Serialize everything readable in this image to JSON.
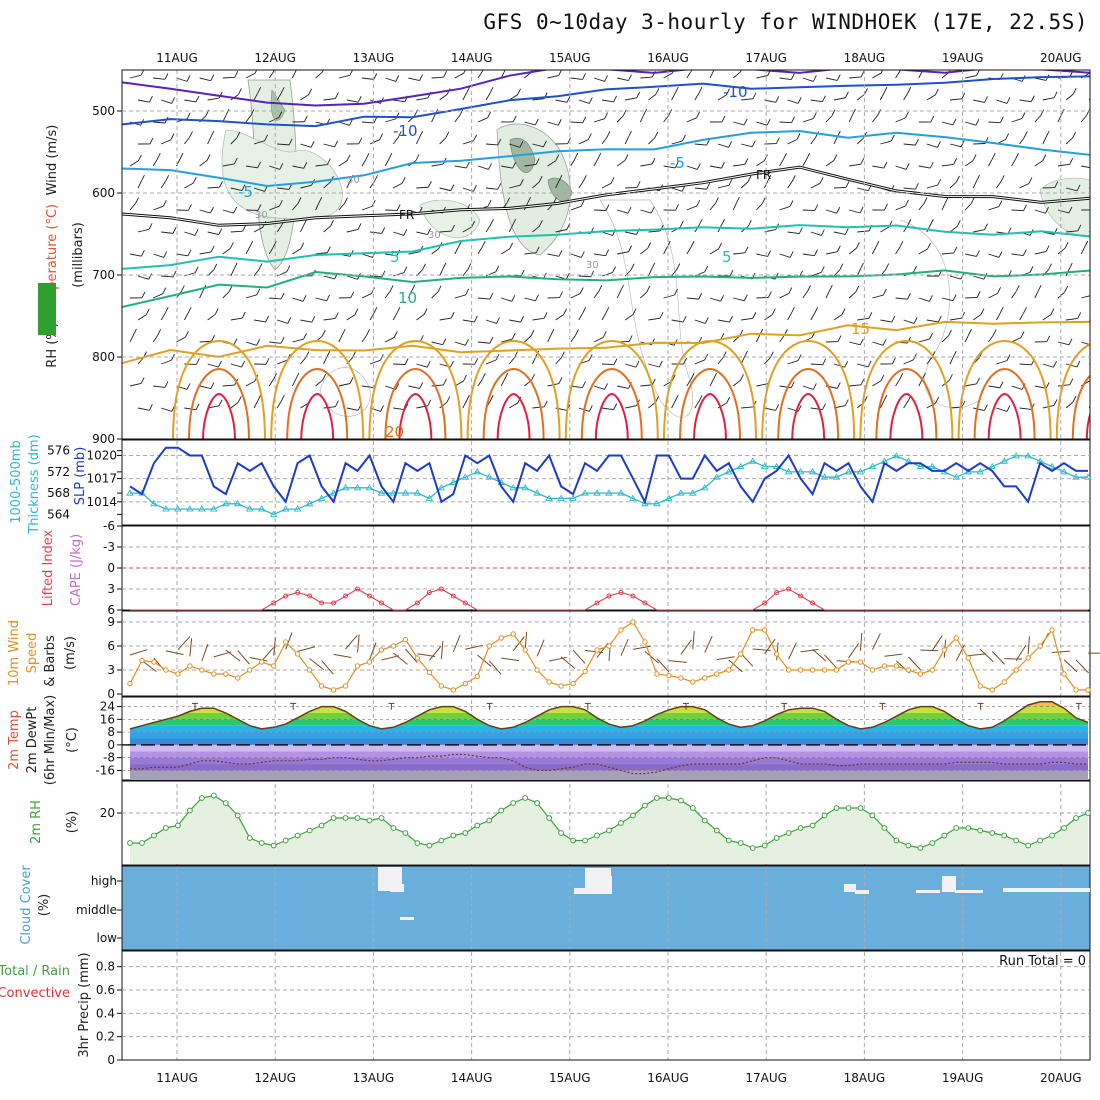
{
  "title": "GFS 0~10day 3-hourly for WINDHOEK (17E, 22.5S)",
  "dates": [
    "11AUG",
    "12AUG",
    "13AUG",
    "14AUG",
    "15AUG",
    "16AUG",
    "17AUG",
    "18AUG",
    "19AUG",
    "20AUG"
  ],
  "colors": {
    "temp_cold": "#5a20c0",
    "temp_blue": "#2050d0",
    "temp_cyan": "#22a0e0",
    "temp_teal": "#20c0b0",
    "temp_green": "#20b080",
    "temp_warm": "#e0a020",
    "temp_orange": "#e07020",
    "temp_red": "#e02040",
    "slp": "#1c3cc8",
    "thickness": "#30b8c8",
    "lifted": "#e04050",
    "wind": "#e09020",
    "rh": "#40a040",
    "cloud": "#6aaedc"
  },
  "chart_data": [
    {
      "panel": "upper-air",
      "type": "contour",
      "ylabel_parts": [
        "Wind (m/s)",
        "Temperature (°C)",
        "RH (%)",
        "(millibars)"
      ],
      "yticks": [
        "500",
        "600",
        "700",
        "800",
        "900"
      ],
      "ylim": [
        450,
        900
      ],
      "contour_labels": [
        "-10",
        "-10",
        "-5",
        "-5",
        "5",
        "5",
        "10",
        "15",
        "20",
        "FR",
        "FR",
        "30",
        "30",
        "30",
        "30"
      ],
      "isotherms": [
        {
          "name": "-15",
          "values": [
            465,
            470,
            480,
            490,
            490,
            488,
            480,
            470,
            455,
            450,
            450,
            450,
            450,
            450,
            450,
            450,
            450,
            450,
            450,
            450,
            450
          ]
        },
        {
          "name": "-10",
          "values": [
            520,
            510,
            515,
            520,
            515,
            510,
            505,
            495,
            490,
            480,
            475,
            470,
            470,
            470,
            468,
            466,
            465,
            463,
            462,
            460,
            460
          ]
        },
        {
          "name": "-5",
          "values": [
            568,
            575,
            585,
            595,
            585,
            575,
            565,
            560,
            555,
            550,
            548,
            545,
            538,
            530,
            528,
            530,
            530,
            535,
            540,
            545,
            550
          ]
        },
        {
          "name": "FR",
          "values": [
            625,
            632,
            640,
            640,
            632,
            625,
            625,
            620,
            618,
            615,
            605,
            598,
            585,
            580,
            572,
            580,
            598,
            605,
            608,
            610,
            610
          ]
        },
        {
          "name": "5",
          "values": [
            695,
            685,
            680,
            680,
            672,
            670,
            668,
            662,
            655,
            650,
            650,
            648,
            645,
            640,
            642,
            645,
            643,
            644,
            648,
            650,
            652
          ]
        },
        {
          "name": "10",
          "values": [
            738,
            722,
            712,
            712,
            700,
            700,
            705,
            702,
            700,
            704,
            703,
            705,
            700,
            702,
            700,
            700,
            698,
            698,
            700,
            698,
            697
          ]
        },
        {
          "name": "15",
          "values": [
            805,
            790,
            800,
            790,
            790,
            790,
            790,
            792,
            790,
            788,
            785,
            785,
            780,
            775,
            770,
            765,
            765,
            760,
            760,
            758,
            760
          ]
        }
      ]
    },
    {
      "panel": "slp-thickness",
      "type": "line",
      "ylabel_parts": [
        "1000-500mb",
        "Thickness (dm)",
        "SLP (mb)"
      ],
      "yticks_left": [
        "564",
        "568",
        "572",
        "576"
      ],
      "yticks_right": [
        "1014",
        "1017",
        "1020"
      ],
      "series": [
        {
          "name": "SLP (mb)",
          "values": [
            1016,
            1015,
            1019,
            1021,
            1021,
            1020,
            1020,
            1016,
            1015,
            1019,
            1018,
            1019,
            1016,
            1014,
            1019,
            1020,
            1016,
            1014,
            1019,
            1018,
            1020,
            1016,
            1014,
            1019,
            1018,
            1019,
            1014,
            1015,
            1020,
            1019,
            1020,
            1016,
            1014,
            1019,
            1018,
            1020,
            1016,
            1015,
            1019,
            1018,
            1020,
            1020,
            1017,
            1014,
            1020,
            1020,
            1017,
            1017,
            1020,
            1018,
            1019,
            1016,
            1014,
            1017,
            1018,
            1020,
            1017,
            1015,
            1019,
            1018,
            1019,
            1016,
            1014,
            1019,
            1018,
            1019,
            1019,
            1018,
            1018,
            1019,
            1018,
            1019,
            1018,
            1016,
            1016,
            1014,
            1019,
            1018,
            1019,
            1018,
            1018
          ]
        },
        {
          "name": "Thickness (dm)",
          "values": [
            568,
            568,
            566,
            565,
            565,
            565,
            565,
            565,
            566,
            566,
            565,
            565,
            564,
            565,
            565,
            566,
            567,
            568,
            569,
            569,
            569,
            568,
            568,
            568,
            568,
            567,
            569,
            570,
            571,
            572,
            571,
            570,
            569,
            569,
            568,
            567,
            567,
            567,
            568,
            568,
            568,
            568,
            567,
            566,
            566,
            567,
            568,
            568,
            569,
            571,
            572,
            573,
            574,
            573,
            573,
            572,
            572,
            572,
            571,
            571,
            572,
            572,
            573,
            574,
            575,
            574,
            573,
            573,
            572,
            571,
            572,
            572,
            573,
            574,
            575,
            575,
            574,
            573,
            572,
            571,
            571
          ]
        }
      ]
    },
    {
      "panel": "stability",
      "type": "line",
      "ylabel_parts": [
        "Lifted Index",
        "CAPE (J/kg)"
      ],
      "yticks": [
        "-6",
        "-3",
        "0",
        "3",
        "6"
      ],
      "series": [
        {
          "name": "Lifted Index",
          "values": [
            6,
            6,
            6,
            6,
            6,
            6,
            6,
            6,
            6,
            6,
            6,
            6,
            5,
            4,
            3.5,
            4,
            5,
            5,
            4,
            3,
            4,
            5,
            6,
            6,
            5,
            3.5,
            3,
            4,
            5,
            6,
            6,
            6,
            6,
            6,
            6,
            6,
            6,
            6,
            6,
            5,
            4,
            3.5,
            4,
            5,
            6,
            6,
            6,
            6,
            6,
            6,
            6,
            6,
            6,
            5,
            3.5,
            3,
            4,
            5,
            6,
            6,
            6,
            6,
            6,
            6,
            6,
            6,
            6,
            6,
            6,
            6,
            6,
            6,
            6,
            6,
            6,
            6,
            6,
            6,
            6,
            6,
            6
          ]
        }
      ]
    },
    {
      "panel": "wind10m",
      "type": "line",
      "ylabel_parts": [
        "10m Wind",
        "Speed",
        "(m/s)",
        "& Barbs"
      ],
      "yticks": [
        "0",
        "3",
        "6",
        "9"
      ],
      "series": [
        {
          "name": "10m Wind Speed",
          "values": [
            1.3,
            4.2,
            4.0,
            3.0,
            2.5,
            3.5,
            3.0,
            2.5,
            2.5,
            2.0,
            3.0,
            4.0,
            3.5,
            6.5,
            5.0,
            3.0,
            1.0,
            0.5,
            1.0,
            3.5,
            4.0,
            5.5,
            6.0,
            6.8,
            4.5,
            2.7,
            1.0,
            0.5,
            1.3,
            2.2,
            6.0,
            7.0,
            7.5,
            5.5,
            3.0,
            1.5,
            1.0,
            1.3,
            2.8,
            5.5,
            6.0,
            8.0,
            9.0,
            6.5,
            2.5,
            2.3,
            2.0,
            1.5,
            2.0,
            2.5,
            3.0,
            5.0,
            8.0,
            8.0,
            5.0,
            3.0,
            3.0,
            3.0,
            3.0,
            3.0,
            4.0,
            4.0,
            3.0,
            3.5,
            3.5,
            3.0,
            2.5,
            3.0,
            5.5,
            7.0,
            4.5,
            1.0,
            0.5,
            1.5,
            3.0,
            4.5,
            6.0,
            8.0,
            2.5,
            0.5,
            0.5
          ]
        }
      ]
    },
    {
      "panel": "temperature2m",
      "type": "area",
      "ylabel_parts": [
        "2m Temp",
        "2m DewPt",
        "(6hr Min/Max)",
        "(°C)"
      ],
      "yticks": [
        "-16",
        "-8",
        "0",
        "8",
        "16",
        "24"
      ],
      "series": [
        {
          "name": "2m Temp",
          "values": [
            10,
            12,
            14,
            16,
            18,
            21,
            23,
            23,
            20,
            16,
            12,
            10,
            11,
            13,
            17,
            21,
            24,
            24,
            21,
            16,
            12,
            10,
            11,
            14,
            18,
            22,
            24,
            24,
            21,
            16,
            12,
            10,
            11,
            14,
            18,
            22,
            24,
            24,
            22,
            17,
            13,
            11,
            12,
            15,
            19,
            22,
            24,
            24,
            22,
            17,
            13,
            11,
            12,
            15,
            19,
            22,
            23,
            23,
            21,
            16,
            12,
            10,
            11,
            14,
            18,
            22,
            24,
            24,
            21,
            16,
            12,
            10,
            11,
            15,
            20,
            25,
            27,
            27,
            23,
            17,
            14
          ]
        },
        {
          "name": "2m DewPt",
          "values": [
            -15,
            -15,
            -14,
            -14,
            -14,
            -12,
            -10,
            -10,
            -11,
            -12,
            -12,
            -11,
            -10,
            -10,
            -10,
            -9,
            -9,
            -8,
            -8,
            -9,
            -10,
            -10,
            -9,
            -8,
            -8,
            -7,
            -7,
            -6,
            -6,
            -7,
            -8,
            -8,
            -10,
            -14,
            -16,
            -16,
            -15,
            -14,
            -12,
            -12,
            -14,
            -16,
            -18,
            -18,
            -17,
            -15,
            -13,
            -12,
            -12,
            -12,
            -12,
            -12,
            -10,
            -8,
            -8,
            -10,
            -12,
            -12,
            -12,
            -13,
            -13,
            -12,
            -12,
            -12,
            -12,
            -12,
            -12,
            -12,
            -12,
            -11,
            -11,
            -11,
            -11,
            -12,
            -12,
            -12,
            -12,
            -11,
            -11,
            -12,
            -12
          ]
        }
      ]
    },
    {
      "panel": "rh2m",
      "type": "area",
      "ylabel_parts": [
        "2m RH",
        "(%)"
      ],
      "yticks": [
        "20"
      ],
      "series": [
        {
          "name": "2m RH",
          "values": [
            8,
            8,
            11,
            14,
            15,
            21,
            26,
            27,
            24,
            19,
            10,
            8,
            7,
            9,
            11,
            13,
            15,
            18,
            18,
            18,
            17,
            18,
            14,
            12,
            8,
            7,
            9,
            11,
            12,
            15,
            17,
            21,
            24,
            26,
            24,
            18,
            12,
            9,
            9,
            11,
            13,
            16,
            19,
            23,
            26,
            26,
            25,
            22,
            17,
            13,
            9,
            8,
            6,
            7,
            10,
            12,
            14,
            15,
            19,
            22,
            22,
            22,
            19,
            14,
            9,
            7,
            6,
            8,
            11,
            14,
            14,
            13,
            12,
            11,
            9,
            7,
            9,
            11,
            14,
            18,
            20
          ]
        }
      ]
    },
    {
      "panel": "cloud-cover",
      "type": "heatmap",
      "ylabel_parts": [
        "Cloud Cover",
        "(%)"
      ],
      "yticks": [
        "high",
        "middle",
        "low"
      ]
    },
    {
      "panel": "precip",
      "type": "bar",
      "ylabel_parts": [
        "Total / Rain",
        "Convective",
        "3hr Precip (mm)"
      ],
      "yticks": [
        "0",
        "0.2",
        "0.4",
        "0.6",
        "0.8"
      ],
      "values": [],
      "annotation": "Run Total = 0"
    }
  ]
}
